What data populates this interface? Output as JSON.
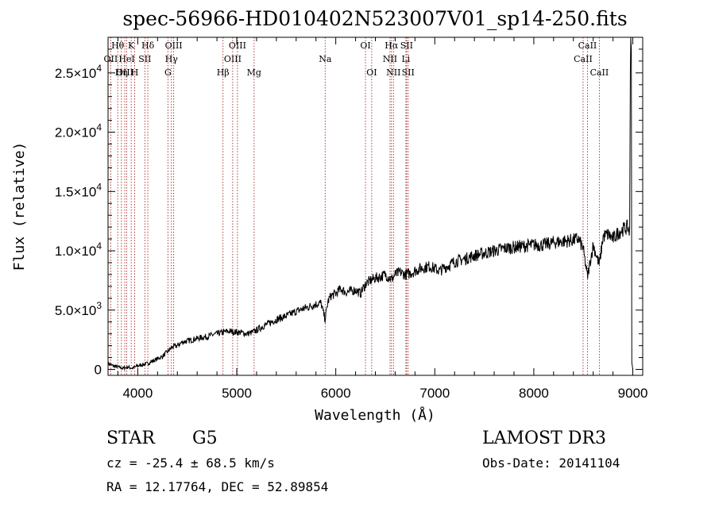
{
  "chart_data": {
    "type": "line",
    "title": "spec-56966-HD010402N523007V01_sp14-250.fits",
    "xlabel": "Wavelength (Å)",
    "ylabel": "Flux (relative)",
    "xlim": [
      3700,
      9100
    ],
    "ylim": [
      -500,
      28000
    ],
    "x_ticks": [
      4000,
      5000,
      6000,
      7000,
      8000,
      9000
    ],
    "x_tick_labels": [
      "4000",
      "5000",
      "6000",
      "7000",
      "8000",
      "9000"
    ],
    "y_ticks": [
      0,
      5000,
      10000,
      15000,
      20000,
      25000
    ],
    "y_tick_labels": [
      {
        "mantissa": "0",
        "exp": ""
      },
      {
        "mantissa": "5.0×10",
        "exp": "3"
      },
      {
        "mantissa": "1.0×10",
        "exp": "4"
      },
      {
        "mantissa": "1.5×10",
        "exp": "4"
      },
      {
        "mantissa": "2.0×10",
        "exp": "4"
      },
      {
        "mantissa": "2.5×10",
        "exp": "4"
      }
    ],
    "series": [
      {
        "name": "flux",
        "x": [
          3700,
          3750,
          3800,
          3850,
          3900,
          3950,
          4000,
          4050,
          4100,
          4150,
          4200,
          4250,
          4300,
          4350,
          4400,
          4450,
          4500,
          4550,
          4600,
          4650,
          4700,
          4750,
          4800,
          4850,
          4900,
          4950,
          5000,
          5050,
          5100,
          5150,
          5200,
          5250,
          5300,
          5400,
          5500,
          5600,
          5700,
          5800,
          5850,
          5893,
          5920,
          5950,
          6000,
          6050,
          6100,
          6150,
          6200,
          6250,
          6300,
          6350,
          6400,
          6450,
          6500,
          6563,
          6600,
          6650,
          6700,
          6750,
          6800,
          6850,
          6900,
          6950,
          7000,
          7050,
          7100,
          7150,
          7200,
          7300,
          7400,
          7500,
          7600,
          7700,
          7800,
          7900,
          8000,
          8100,
          8200,
          8300,
          8400,
          8450,
          8498,
          8542,
          8600,
          8662,
          8700,
          8750,
          8800,
          8850,
          8900,
          8950,
          8970
        ],
        "y": [
          500,
          300,
          200,
          100,
          200,
          100,
          300,
          400,
          500,
          700,
          900,
          1100,
          1500,
          1900,
          2000,
          2300,
          2400,
          2500,
          2600,
          2700,
          2750,
          2900,
          3000,
          3100,
          3200,
          3200,
          3150,
          3100,
          3000,
          3100,
          3300,
          3550,
          3800,
          4200,
          4500,
          4900,
          5200,
          5500,
          5600,
          4200,
          5700,
          6200,
          6400,
          6800,
          6500,
          6600,
          6700,
          6400,
          7200,
          7500,
          7700,
          7800,
          8000,
          7600,
          8000,
          8200,
          8000,
          8100,
          8300,
          8500,
          8600,
          8700,
          8500,
          8300,
          8600,
          8800,
          9100,
          9300,
          9600,
          9800,
          10000,
          10200,
          10300,
          10400,
          10500,
          10500,
          10700,
          10800,
          10900,
          11000,
          10200,
          7800,
          10500,
          8800,
          11200,
          11400,
          11000,
          11500,
          11800,
          12000,
          11500
        ]
      }
    ],
    "edge_spike": {
      "x": [
        8975,
        8980,
        8985,
        8990,
        9000
      ],
      "y": [
        25000,
        28000,
        27000,
        600,
        0
      ]
    },
    "spectral_lines": [
      {
        "label": "Hθ",
        "x": 3798,
        "row": 1
      },
      {
        "label": "OII",
        "x": 3727,
        "row": 2
      },
      {
        "label": "OIII",
        "x": 3869,
        "row": 3
      },
      {
        "label": "Hη",
        "x": 3835,
        "row": 3
      },
      {
        "label": "HeI",
        "x": 3889,
        "row": 2
      },
      {
        "label": "K",
        "x": 3934,
        "row": 1
      },
      {
        "label": "SII",
        "x": 4072,
        "row": 2
      },
      {
        "label": "H",
        "x": 3969,
        "row": 3
      },
      {
        "label": "Hδ",
        "x": 4102,
        "row": 1
      },
      {
        "label": "OIII",
        "x": 4363,
        "row": 1
      },
      {
        "label": "Hγ",
        "x": 4340,
        "row": 2
      },
      {
        "label": "G",
        "x": 4305,
        "row": 3
      },
      {
        "label": "Hβ",
        "x": 4861,
        "row": 3
      },
      {
        "label": "OIII",
        "x": 5007,
        "row": 1
      },
      {
        "label": "OIII",
        "x": 4959,
        "row": 2
      },
      {
        "label": "Mg",
        "x": 5175,
        "row": 3
      },
      {
        "label": "Na",
        "x": 5893,
        "row": 2
      },
      {
        "label": "OI",
        "x": 6300,
        "row": 1
      },
      {
        "label": "OI",
        "x": 6363,
        "row": 3
      },
      {
        "label": "Hα",
        "x": 6563,
        "row": 1
      },
      {
        "label": "SII",
        "x": 6716,
        "row": 1
      },
      {
        "label": "NII",
        "x": 6548,
        "row": 2
      },
      {
        "label": "Li",
        "x": 6708,
        "row": 2
      },
      {
        "label": "NII",
        "x": 6583,
        "row": 3
      },
      {
        "label": "SII",
        "x": 6731,
        "row": 3
      },
      {
        "label": "CaII",
        "x": 8542,
        "row": 1
      },
      {
        "label": "CaII",
        "x": 8498,
        "row": 2
      },
      {
        "label": "CaII",
        "x": 8662,
        "row": 3
      }
    ]
  },
  "info": {
    "object_type": "STAR",
    "spectral_class": "G5",
    "survey": "LAMOST DR3",
    "redshift": "cz = -25.4 ± 68.5 km/s",
    "obs_date": "Obs-Date: 20141104",
    "coords": "RA =  12.17764, DEC =  52.89854"
  },
  "colors": {
    "spectrum": "#000000",
    "line_markers": "#a52a2a",
    "axes": "#000000",
    "background": "#ffffff"
  }
}
